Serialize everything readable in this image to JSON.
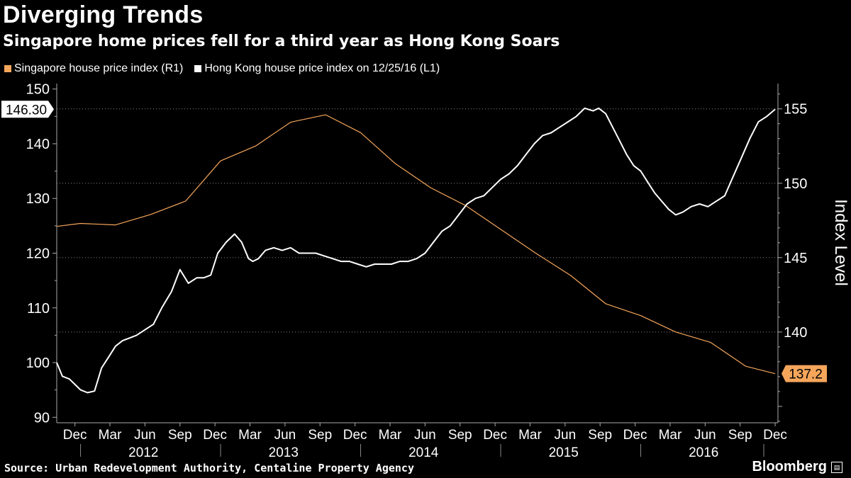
{
  "title": "Diverging Trends",
  "subtitle": "Singapore home prices fell for a third year as Hong Kong Soars",
  "legend": [
    {
      "label": "Singapore house price index (R1)",
      "color": "#F5A65B"
    },
    {
      "label": "Hong Kong house price index on 12/25/16 (L1)",
      "color": "#FFFFFF"
    }
  ],
  "source": "Source: Urban Redevelopment Authority, Centaline Property Agency",
  "brand": "Bloomberg",
  "brand_icon": "bloomberg-terminal-icon",
  "chart_data": {
    "type": "line",
    "left_axis": {
      "ticks": [
        90,
        100,
        110,
        120,
        130,
        140,
        150
      ],
      "range": [
        89,
        151
      ]
    },
    "right_axis": {
      "ticks": [
        140,
        145,
        150,
        155
      ],
      "range": [
        133.9,
        156.7
      ],
      "label": "Index Level"
    },
    "x_range": [
      2011.83,
      2016.98
    ],
    "x_ticks": [
      {
        "label": "Dec",
        "x": 2011.96
      },
      {
        "label": "Mar",
        "x": 2012.21
      },
      {
        "label": "Jun",
        "x": 2012.46
      },
      {
        "label": "Sep",
        "x": 2012.71
      },
      {
        "label": "Dec",
        "x": 2012.96
      },
      {
        "label": "Mar",
        "x": 2013.21
      },
      {
        "label": "Jun",
        "x": 2013.46
      },
      {
        "label": "Sep",
        "x": 2013.71
      },
      {
        "label": "Dec",
        "x": 2013.96
      },
      {
        "label": "Mar",
        "x": 2014.21
      },
      {
        "label": "Jun",
        "x": 2014.46
      },
      {
        "label": "Sep",
        "x": 2014.71
      },
      {
        "label": "Dec",
        "x": 2014.96
      },
      {
        "label": "Mar",
        "x": 2015.21
      },
      {
        "label": "Jun",
        "x": 2015.46
      },
      {
        "label": "Sep",
        "x": 2015.71
      },
      {
        "label": "Dec",
        "x": 2015.96
      },
      {
        "label": "Mar",
        "x": 2016.21
      },
      {
        "label": "Jun",
        "x": 2016.46
      },
      {
        "label": "Sep",
        "x": 2016.71
      },
      {
        "label": "Dec",
        "x": 2016.96
      }
    ],
    "years": [
      {
        "label": "2012",
        "x": 2012.5
      },
      {
        "label": "2013",
        "x": 2013.5
      },
      {
        "label": "2014",
        "x": 2014.5
      },
      {
        "label": "2015",
        "x": 2015.5
      },
      {
        "label": "2016",
        "x": 2016.5
      }
    ],
    "year_dividers": [
      2012.0,
      2013.0,
      2014.0,
      2015.0,
      2016.0,
      2017.0
    ],
    "series": [
      {
        "name": "Singapore house price index (R1)",
        "axis": "right",
        "color": "#F5A65B",
        "last_label": "137.2",
        "x": [
          2011.83,
          2012.0,
          2012.25,
          2012.5,
          2012.75,
          2013.0,
          2013.25,
          2013.5,
          2013.75,
          2014.0,
          2014.25,
          2014.5,
          2014.75,
          2015.0,
          2015.25,
          2015.5,
          2015.75,
          2016.0,
          2016.25,
          2016.5,
          2016.75,
          2016.96
        ],
        "values": [
          147.1,
          147.3,
          147.2,
          147.9,
          148.8,
          151.5,
          152.5,
          154.1,
          154.6,
          153.4,
          151.3,
          149.7,
          148.5,
          146.9,
          145.3,
          143.8,
          141.9,
          141.1,
          140.0,
          139.3,
          137.7,
          137.2
        ]
      },
      {
        "name": "Hong Kong house price index on 12/25/16 (L1)",
        "axis": "left",
        "color": "#FFFFFF",
        "last_label": "146.30",
        "x": [
          2011.83,
          2011.87,
          2011.92,
          2011.96,
          2012.0,
          2012.05,
          2012.1,
          2012.15,
          2012.2,
          2012.25,
          2012.3,
          2012.35,
          2012.4,
          2012.46,
          2012.52,
          2012.58,
          2012.65,
          2012.71,
          2012.77,
          2012.83,
          2012.88,
          2012.93,
          2012.98,
          2013.04,
          2013.1,
          2013.15,
          2013.2,
          2013.23,
          2013.27,
          2013.32,
          2013.38,
          2013.44,
          2013.5,
          2013.56,
          2013.62,
          2013.68,
          2013.74,
          2013.8,
          2013.86,
          2013.92,
          2013.98,
          2014.04,
          2014.1,
          2014.16,
          2014.22,
          2014.28,
          2014.34,
          2014.4,
          2014.46,
          2014.52,
          2014.58,
          2014.64,
          2014.7,
          2014.76,
          2014.82,
          2014.88,
          2014.94,
          2015.0,
          2015.06,
          2015.12,
          2015.18,
          2015.24,
          2015.3,
          2015.36,
          2015.42,
          2015.48,
          2015.54,
          2015.6,
          2015.66,
          2015.7,
          2015.75,
          2015.8,
          2015.85,
          2015.9,
          2015.95,
          2016.0,
          2016.05,
          2016.1,
          2016.15,
          2016.2,
          2016.25,
          2016.3,
          2016.36,
          2016.42,
          2016.48,
          2016.54,
          2016.6,
          2016.66,
          2016.72,
          2016.78,
          2016.84,
          2016.9,
          2016.96
        ],
        "values": [
          100.0,
          97.5,
          97.0,
          96.0,
          95.0,
          94.5,
          94.8,
          99.0,
          101.0,
          103.0,
          104.0,
          104.5,
          105.0,
          106.0,
          107.0,
          110.0,
          113.0,
          117.0,
          114.5,
          115.5,
          115.5,
          116.0,
          120.0,
          122.0,
          123.5,
          122.0,
          119.0,
          118.5,
          119.0,
          120.5,
          121.0,
          120.5,
          121.0,
          120.0,
          120.0,
          120.0,
          119.5,
          119.0,
          118.5,
          118.5,
          118.0,
          117.5,
          118.0,
          118.0,
          118.0,
          118.5,
          118.5,
          119.0,
          120.0,
          122.0,
          124.0,
          125.0,
          127.0,
          129.0,
          130.0,
          130.5,
          132.0,
          133.5,
          134.5,
          136.0,
          138.0,
          140.0,
          141.5,
          142.0,
          143.0,
          144.0,
          145.0,
          146.5,
          146.0,
          146.5,
          145.5,
          143.0,
          140.5,
          138.0,
          136.0,
          135.0,
          133.0,
          131.0,
          129.5,
          128.0,
          127.0,
          127.5,
          128.5,
          129.0,
          128.5,
          129.5,
          130.5,
          134.0,
          137.5,
          141.0,
          144.0,
          145.0,
          146.3
        ]
      }
    ]
  }
}
